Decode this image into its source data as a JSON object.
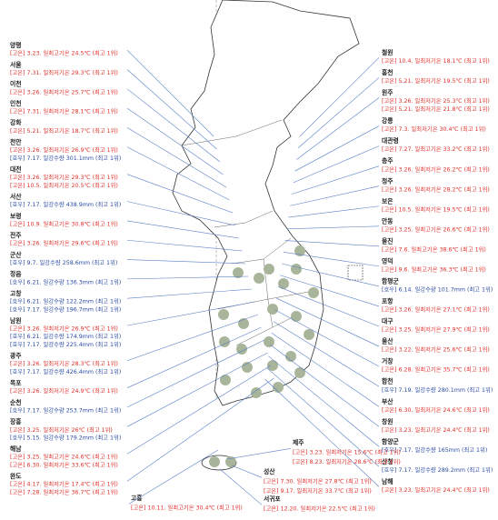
{
  "left": [
    {
      "name": "양평",
      "records": [
        {
          "text": "[고온] 3.23. 일최고기온 24.5℃ (최고 1위)",
          "color": "#e0302a"
        }
      ]
    },
    {
      "name": "서울",
      "records": [
        {
          "text": "[고온] 7.31. 일최저기온 29.3℃ (최고 1위)",
          "color": "#e0302a"
        }
      ]
    },
    {
      "name": "이천",
      "records": [
        {
          "text": "[고온] 3.26. 일최저기온 25.7℃ (최고 1위)",
          "color": "#e0302a"
        }
      ]
    },
    {
      "name": "인천",
      "records": [
        {
          "text": "[고온] 7.31. 일최저기온 28.1℃ (최고 1위)",
          "color": "#e0302a"
        }
      ]
    },
    {
      "name": "강화",
      "records": [
        {
          "text": "[고온] 5.21. 일최고기온 18.7℃ (최고 1위)",
          "color": "#e0302a"
        }
      ]
    },
    {
      "name": "천안",
      "records": [
        {
          "text": "[고온] 3.26. 일최저기온 26.9℃ (최고 1위)",
          "color": "#e0302a"
        },
        {
          "text": "[호우] 7.17. 일강수량 301.1mm (최고 1위)",
          "color": "#2b4ba6"
        }
      ]
    },
    {
      "name": "대전",
      "records": [
        {
          "text": "[고온] 3.26. 일최저기온 29.3℃ (최고 1위)",
          "color": "#e0302a"
        },
        {
          "text": "[고온] 10.5. 일최저기온 20.5℃ (최고 1위)",
          "color": "#e0302a"
        }
      ]
    },
    {
      "name": "서산",
      "records": [
        {
          "text": "[호우] 7.17. 일강수량 438.9mm (최고 1위)",
          "color": "#2b4ba6"
        }
      ]
    },
    {
      "name": "보령",
      "records": [
        {
          "text": "[고온] 10.9. 일최고기온 30.8℃ (최고 1위)",
          "color": "#e0302a"
        }
      ]
    },
    {
      "name": "전주",
      "records": [
        {
          "text": "[고온] 3.26. 일최저기온 29.6℃ (최고 1위)",
          "color": "#e0302a"
        }
      ]
    },
    {
      "name": "군산",
      "records": [
        {
          "text": "[호우] 9.7. 일강수량 258.6mm (최고 1위)",
          "color": "#2b4ba6"
        }
      ]
    },
    {
      "name": "정읍",
      "records": [
        {
          "text": "[호우] 6.21. 일강수량 136.3mm (최고 1위)",
          "color": "#2b4ba6"
        }
      ]
    },
    {
      "name": "고창",
      "records": [
        {
          "text": "[호우] 6.21. 일강수량 122.2mm (최고 1위)",
          "color": "#2b4ba6"
        },
        {
          "text": "[호우] 7.17. 일강수량 196.7mm (최고 1위)",
          "color": "#2b4ba6"
        }
      ]
    },
    {
      "name": "남원",
      "records": [
        {
          "text": "[고온] 3.26. 일최저기온 26.9℃ (최고 1위)",
          "color": "#e0302a"
        },
        {
          "text": "[호우] 6.21. 일강수량 174.9mm (최고 1위)",
          "color": "#2b4ba6"
        },
        {
          "text": "[호우] 7.17. 일강수량 225.4mm (최고 1위)",
          "color": "#2b4ba6"
        }
      ]
    },
    {
      "name": "광주",
      "records": [
        {
          "text": "[고온] 3.26. 일최저기온 28.3℃ (최고 1위)",
          "color": "#e0302a"
        },
        {
          "text": "[호우] 7.17. 일강수량 426.4mm (최고 1위)",
          "color": "#2b4ba6"
        }
      ]
    },
    {
      "name": "목포",
      "records": [
        {
          "text": "[고온] 3.26. 일최저기온 24.9℃ (최고 1위)",
          "color": "#e0302a"
        }
      ]
    },
    {
      "name": "순천",
      "records": [
        {
          "text": "[호우] 7.17. 일강수량 253.7mm (최고 1위)",
          "color": "#2b4ba6"
        }
      ]
    },
    {
      "name": "장흥",
      "records": [
        {
          "text": "[고온] 3.25. 일최저기온 26℃ (최고 1위)",
          "color": "#e0302a"
        },
        {
          "text": "[호우] 5.15. 일강수량 179.2mm (최고 1위)",
          "color": "#2b4ba6"
        }
      ]
    },
    {
      "name": "해남",
      "records": [
        {
          "text": "[고온] 3.25. 일최고기온 24.6℃ (최고 1위)",
          "color": "#e0302a"
        },
        {
          "text": "[고온] 6.30. 일최저기온 33.6℃ (최고 1위)",
          "color": "#e0302a"
        }
      ]
    },
    {
      "name": "완도",
      "records": [
        {
          "text": "[고온] 4.17. 일최저기온 17.4℃ (최고 1위)",
          "color": "#e0302a"
        },
        {
          "text": "[고온] 7.28. 일최저기온 36.7℃ (최고 1위)",
          "color": "#e0302a"
        }
      ]
    }
  ],
  "right": [
    {
      "name": "철원",
      "records": [
        {
          "text": "[고온] 10.4. 일최저기온 18.1℃ (최고 1위)",
          "color": "#e0302a"
        }
      ]
    },
    {
      "name": "홍천",
      "records": [
        {
          "text": "[고온] 5.21. 일최저기온 19.5℃ (최고 1위)",
          "color": "#e0302a"
        }
      ]
    },
    {
      "name": "원주",
      "records": [
        {
          "text": "[고온] 3.26. 일최저기온 25.3℃ (최고 1위)",
          "color": "#e0302a"
        },
        {
          "text": "[고온] 5.21. 일최저기온 21.8℃ (최고 1위)",
          "color": "#e0302a"
        }
      ]
    },
    {
      "name": "강릉",
      "records": [
        {
          "text": "[고온] 7.3. 일최저기온 30.4℃ (최고 1위)",
          "color": "#e0302a"
        }
      ]
    },
    {
      "name": "대관령",
      "records": [
        {
          "text": "[고온] 7.27. 일최고기온 33.2℃ (최고 1위)",
          "color": "#e0302a"
        }
      ]
    },
    {
      "name": "충주",
      "records": [
        {
          "text": "[고온] 3.26. 일최저기온 26.2℃ (최고 1위)",
          "color": "#e0302a"
        }
      ]
    },
    {
      "name": "청주",
      "records": [
        {
          "text": "[고온] 3.26. 일최저기온 28.2℃ (최고 1위)",
          "color": "#e0302a"
        }
      ]
    },
    {
      "name": "보은",
      "records": [
        {
          "text": "[고온] 10.5. 일최저기온 19.5℃ (최고 1위)",
          "color": "#e0302a"
        }
      ]
    },
    {
      "name": "안동",
      "records": [
        {
          "text": "[고온] 3.25. 일최고기온 26.6℃ (최고 1위)",
          "color": "#e0302a"
        }
      ]
    },
    {
      "name": "울진",
      "records": [
        {
          "text": "[고온] 7.6. 일최고기온 38.6℃ (최고 1위)",
          "color": "#e0302a"
        }
      ]
    },
    {
      "name": "영덕",
      "records": [
        {
          "text": "[고온] 9.6. 일최고기온 36.3℃ (최고 1위)",
          "color": "#e0302a"
        }
      ]
    },
    {
      "name": "함평군",
      "records": [
        {
          "text": "[호우] 6.14. 일강수량 101.7mm (최고 1위)",
          "color": "#2b4ba6"
        }
      ]
    },
    {
      "name": "포항",
      "records": [
        {
          "text": "[고온] 3.26. 일최저기온 27.1℃ (최고 1위)",
          "color": "#e0302a"
        }
      ]
    },
    {
      "name": "대구",
      "records": [
        {
          "text": "[고온] 3.25. 일최저기온 27.9℃ (최고 1위)",
          "color": "#e0302a"
        }
      ]
    },
    {
      "name": "울산",
      "records": [
        {
          "text": "[고온] 3.22. 일최저기온 25.6℃ (최고 1위)",
          "color": "#e0302a"
        }
      ]
    },
    {
      "name": "거창",
      "records": [
        {
          "text": "[고온] 6.28. 일최고기온 35.7℃ (최고 1위)",
          "color": "#e0302a"
        }
      ]
    },
    {
      "name": "합천",
      "records": [
        {
          "text": "[호우] 7.19. 일강수량 280.1mm (최고 1위)",
          "color": "#2b4ba6"
        }
      ]
    },
    {
      "name": "부산",
      "records": [
        {
          "text": "[고온] 6.30. 일최저기온 24.6℃ (최고 1위)",
          "color": "#e0302a"
        }
      ]
    },
    {
      "name": "창원",
      "records": [
        {
          "text": "[고온] 3.23. 일최고기온 24.4℃ (최고 1위)",
          "color": "#e0302a"
        }
      ]
    },
    {
      "name": "함양군",
      "records": [
        {
          "text": "[호우] 7.17. 일강수량 165mm (최고 1위)",
          "color": "#2b4ba6"
        }
      ]
    },
    {
      "name": "산청",
      "records": [
        {
          "text": "[호우] 7.17. 일강수량 289.2mm (최고 1위)",
          "color": "#2b4ba6"
        }
      ]
    },
    {
      "name": "남해",
      "records": [
        {
          "text": "[고온] 3.23. 일최고기온 24.4℃ (최고 1위)",
          "color": "#e0302a"
        }
      ]
    }
  ],
  "bottom": [
    {
      "name": "고흥",
      "records": [
        {
          "text": "[고온] 10.11. 일최고기온 30.4℃ (최고 1위)",
          "color": "#e0302a"
        }
      ]
    },
    {
      "name": "제주",
      "records": [
        {
          "text": "[고온] 3.23. 일최저기온 15.6℃ (최고 1위)",
          "color": "#e0302a"
        },
        {
          "text": "[고온] 8.23. 일최저기온 28.6℃ (최고 1위)",
          "color": "#e0302a"
        }
      ]
    },
    {
      "name": "성산",
      "records": [
        {
          "text": "[고온] 7.30. 일최저기온 27.8℃ (최고 1위)",
          "color": "#e0302a"
        },
        {
          "text": "[고온] 9.17. 일최저기온 33.7℃ (최고 1위)",
          "color": "#e0302a"
        }
      ]
    },
    {
      "name": "서귀포",
      "records": [
        {
          "text": "[고온] 12.20. 일최저기온 22.5℃ (최고 1위)",
          "color": "#e0302a"
        }
      ]
    }
  ]
}
